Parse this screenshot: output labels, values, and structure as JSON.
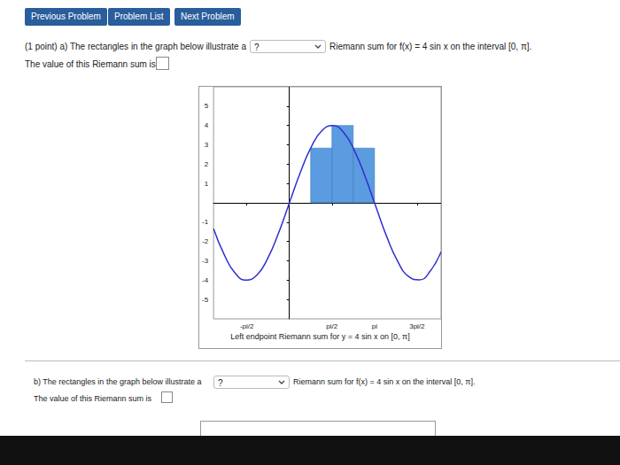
{
  "header": {
    "buttons": [
      "Previous Problem",
      "Problem List",
      "Next Problem"
    ]
  },
  "part_a": {
    "prompt": "(1 point) a) The rectangles in the graph below illustrate a",
    "select": "?",
    "prompt_end": "Riemann sum for f(x) = 4 sin x on the interval [0, π].",
    "answer_prompt": "The value of this Riemann sum is"
  },
  "chart_data": {
    "type": "line",
    "caption": "Left endpoint Riemann sum for y = 4 sin x on [0, π]",
    "series": [
      {
        "type": "line",
        "color": "#2f2fd0",
        "x": [
          -2.8,
          -2.4,
          -2.0,
          -1.6,
          -1.2,
          -0.8,
          -0.4,
          0,
          0.4,
          0.8,
          1.2,
          1.6,
          2.0,
          2.4,
          2.8,
          3.2,
          3.6,
          4.0,
          4.4,
          4.8,
          5.2,
          5.6
        ],
        "values": [
          -1.34,
          -2.7,
          -3.64,
          -4.0,
          -3.73,
          -2.87,
          -1.56,
          0,
          1.56,
          2.87,
          3.73,
          4.0,
          3.64,
          2.7,
          1.34,
          -0.23,
          -1.77,
          -3.03,
          -3.81,
          -3.98,
          -3.53,
          -2.53
        ]
      },
      {
        "type": "bar",
        "color": "#5b9be0",
        "x_left": [
          0.7854,
          1.5708,
          2.3562
        ],
        "x_right": [
          1.5708,
          2.3562,
          3.1416
        ],
        "values": [
          2.83,
          4,
          2.83
        ]
      }
    ],
    "xlim": [
      -2.8,
      5.6
    ],
    "ylim": [
      -6,
      6
    ],
    "xticks": [
      {
        "value": -1.5708,
        "label": "-pi/2"
      },
      {
        "value": 1.5708,
        "label": "pi/2"
      },
      {
        "value": 3.1416,
        "label": "pi"
      },
      {
        "value": 4.7124,
        "label": "3pi/2"
      }
    ],
    "yticks": [
      -5,
      -4,
      -3,
      -2,
      -1,
      1,
      2,
      3,
      4,
      5
    ],
    "grid": false
  },
  "part_b": {
    "prompt": "b) The rectangles in the graph below illustrate a",
    "select": "?",
    "prompt_end": "Riemann sum for f(x) = 4 sin x on the interval [0, π].",
    "answer_prompt": "The value of this Riemann sum is"
  }
}
